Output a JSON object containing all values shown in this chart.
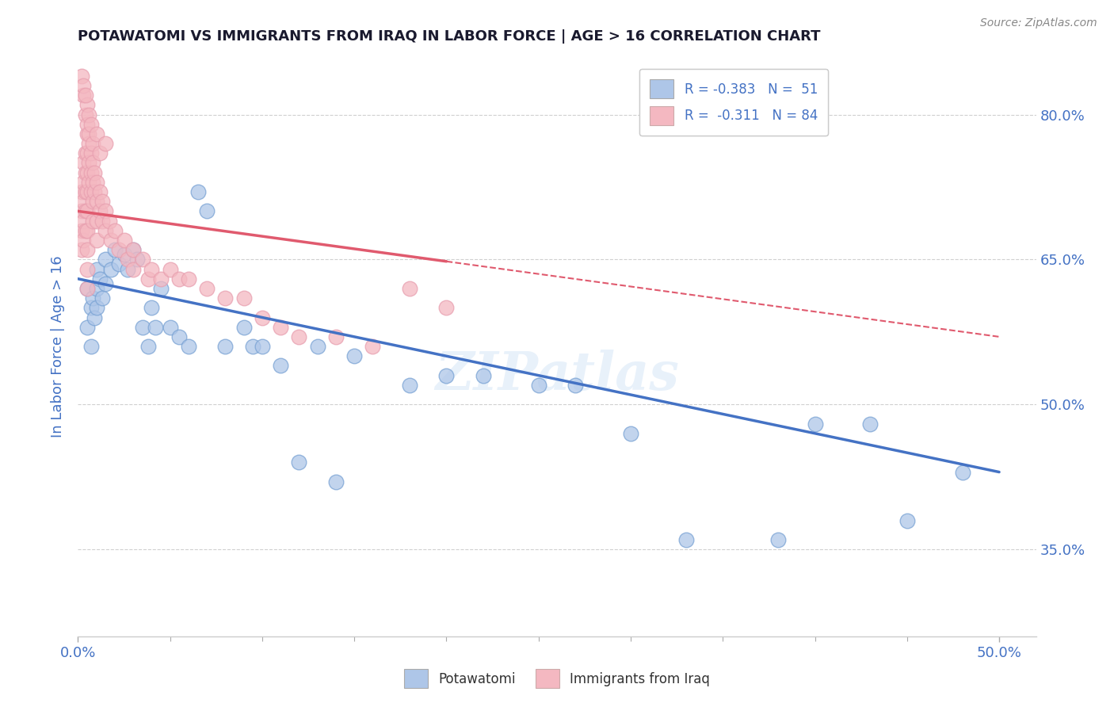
{
  "title": "POTAWATOMI VS IMMIGRANTS FROM IRAQ IN LABOR FORCE | AGE > 16 CORRELATION CHART",
  "source_text": "Source: ZipAtlas.com",
  "ylabel": "In Labor Force | Age > 16",
  "xlim": [
    0.0,
    0.52
  ],
  "ylim": [
    0.26,
    0.86
  ],
  "yticks": [
    0.35,
    0.5,
    0.65,
    0.8
  ],
  "ytick_labels": [
    "35.0%",
    "50.0%",
    "65.0%",
    "80.0%"
  ],
  "blue_scatter_x": [
    0.005,
    0.005,
    0.007,
    0.007,
    0.008,
    0.009,
    0.01,
    0.01,
    0.01,
    0.012,
    0.013,
    0.015,
    0.015,
    0.018,
    0.02,
    0.022,
    0.025,
    0.027,
    0.03,
    0.032,
    0.035,
    0.038,
    0.04,
    0.042,
    0.045,
    0.05,
    0.055,
    0.06,
    0.065,
    0.07,
    0.08,
    0.09,
    0.095,
    0.1,
    0.11,
    0.12,
    0.13,
    0.14,
    0.15,
    0.18,
    0.2,
    0.22,
    0.25,
    0.27,
    0.3,
    0.33,
    0.38,
    0.4,
    0.43,
    0.45,
    0.48
  ],
  "blue_scatter_y": [
    0.62,
    0.58,
    0.6,
    0.56,
    0.61,
    0.59,
    0.64,
    0.62,
    0.6,
    0.63,
    0.61,
    0.65,
    0.625,
    0.64,
    0.66,
    0.645,
    0.655,
    0.64,
    0.66,
    0.65,
    0.58,
    0.56,
    0.6,
    0.58,
    0.62,
    0.58,
    0.57,
    0.56,
    0.72,
    0.7,
    0.56,
    0.58,
    0.56,
    0.56,
    0.54,
    0.44,
    0.56,
    0.42,
    0.55,
    0.52,
    0.53,
    0.53,
    0.52,
    0.52,
    0.47,
    0.36,
    0.36,
    0.48,
    0.48,
    0.38,
    0.43
  ],
  "pink_scatter_x": [
    0.002,
    0.002,
    0.002,
    0.002,
    0.003,
    0.003,
    0.003,
    0.003,
    0.003,
    0.004,
    0.004,
    0.004,
    0.004,
    0.004,
    0.005,
    0.005,
    0.005,
    0.005,
    0.005,
    0.005,
    0.005,
    0.005,
    0.005,
    0.006,
    0.006,
    0.006,
    0.007,
    0.007,
    0.007,
    0.008,
    0.008,
    0.008,
    0.008,
    0.009,
    0.009,
    0.01,
    0.01,
    0.01,
    0.01,
    0.012,
    0.012,
    0.013,
    0.013,
    0.015,
    0.015,
    0.017,
    0.018,
    0.02,
    0.022,
    0.025,
    0.027,
    0.03,
    0.03,
    0.035,
    0.038,
    0.04,
    0.045,
    0.05,
    0.055,
    0.06,
    0.07,
    0.08,
    0.09,
    0.1,
    0.11,
    0.12,
    0.14,
    0.16,
    0.18,
    0.2,
    0.003,
    0.004,
    0.005,
    0.005,
    0.006,
    0.006,
    0.007,
    0.008,
    0.01,
    0.012,
    0.015,
    0.002,
    0.003,
    0.004
  ],
  "pink_scatter_y": [
    0.72,
    0.7,
    0.68,
    0.66,
    0.75,
    0.73,
    0.71,
    0.69,
    0.67,
    0.76,
    0.74,
    0.72,
    0.7,
    0.68,
    0.78,
    0.76,
    0.74,
    0.72,
    0.7,
    0.68,
    0.66,
    0.64,
    0.62,
    0.77,
    0.75,
    0.73,
    0.76,
    0.74,
    0.72,
    0.75,
    0.73,
    0.71,
    0.69,
    0.74,
    0.72,
    0.73,
    0.71,
    0.69,
    0.67,
    0.72,
    0.7,
    0.71,
    0.69,
    0.7,
    0.68,
    0.69,
    0.67,
    0.68,
    0.66,
    0.67,
    0.65,
    0.66,
    0.64,
    0.65,
    0.63,
    0.64,
    0.63,
    0.64,
    0.63,
    0.63,
    0.62,
    0.61,
    0.61,
    0.59,
    0.58,
    0.57,
    0.57,
    0.56,
    0.62,
    0.6,
    0.82,
    0.8,
    0.81,
    0.79,
    0.8,
    0.78,
    0.79,
    0.77,
    0.78,
    0.76,
    0.77,
    0.84,
    0.83,
    0.82
  ],
  "blue_line_x": [
    0.0,
    0.5
  ],
  "blue_line_y": [
    0.63,
    0.43
  ],
  "pink_line_x": [
    0.0,
    0.5
  ],
  "pink_line_y": [
    0.7,
    0.57
  ],
  "pink_line_solid_end": 0.2,
  "blue_color": "#4472c4",
  "pink_color": "#e05a6e",
  "blue_scatter_color": "#aec6e8",
  "pink_scatter_color": "#f4b8c1",
  "blue_scatter_edge": "#7aa3d4",
  "pink_scatter_edge": "#e8a0b0",
  "watermark": "ZIPatlas",
  "title_color": "#1a1a2e",
  "axis_label_color": "#4472c4",
  "tick_color": "#4472c4",
  "grid_color": "#d0d0d0",
  "source_color": "#888888"
}
